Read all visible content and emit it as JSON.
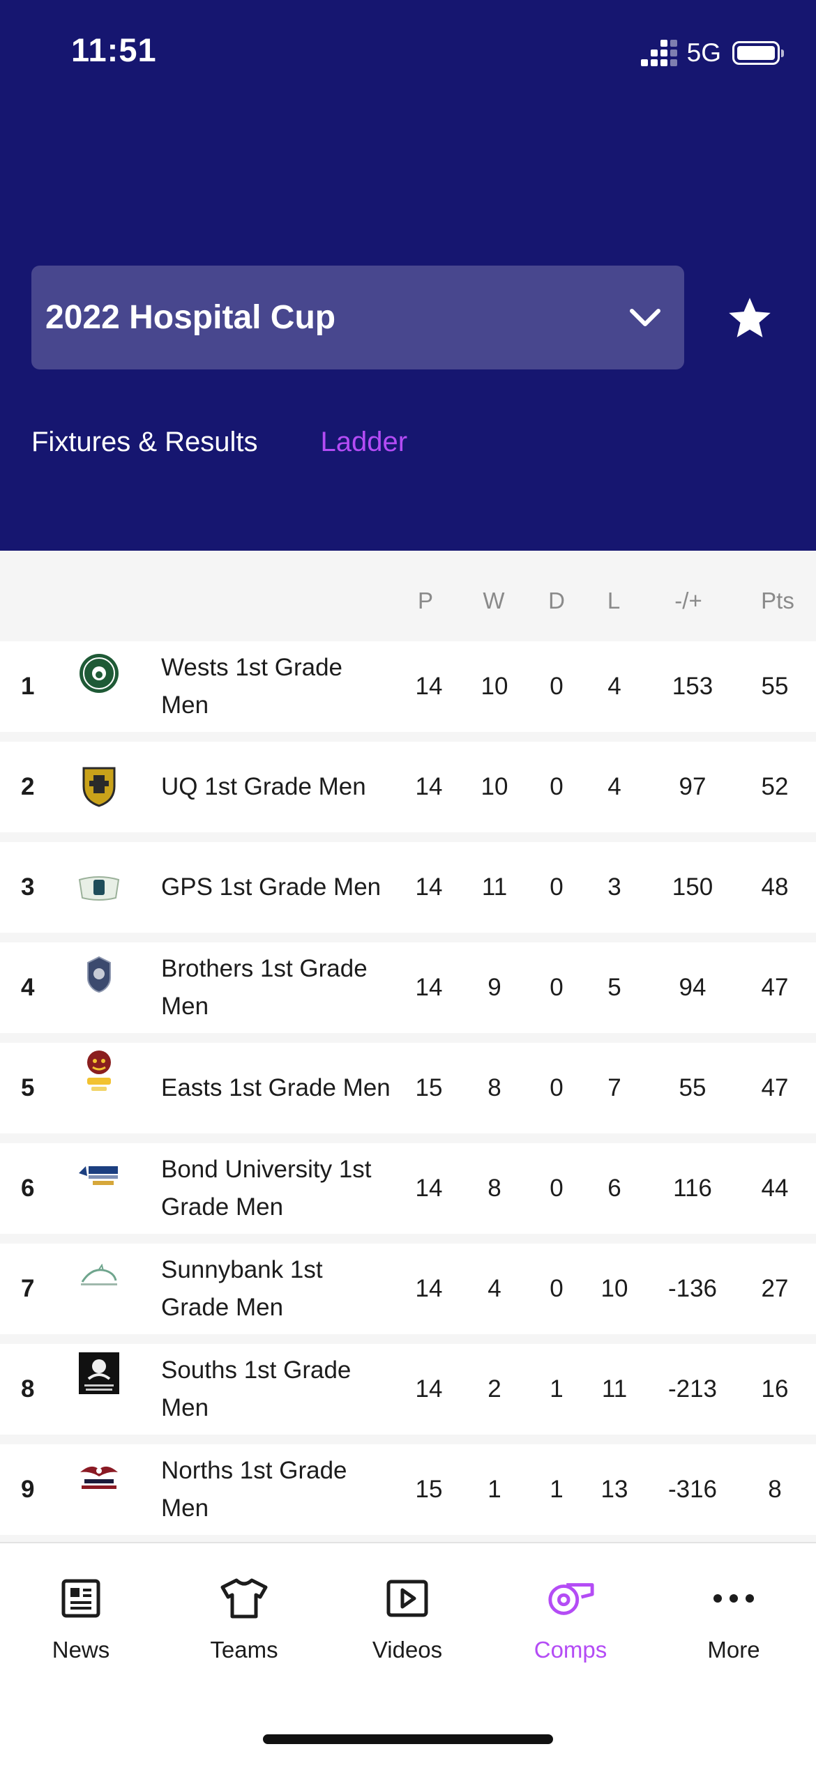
{
  "status_bar": {
    "time": "11:51",
    "network": "5G"
  },
  "competition": {
    "title": "2022 Hospital Cup"
  },
  "tabs": [
    {
      "label": "Fixtures & Results",
      "active": false
    },
    {
      "label": "Ladder",
      "active": true
    }
  ],
  "ladder": {
    "columns": [
      "P",
      "W",
      "D",
      "L",
      "-/+",
      "Pts"
    ],
    "rows": [
      {
        "rank": "1",
        "team": "Wests 1st Grade Men",
        "logo": "wests-bulldog-logo",
        "p": "14",
        "w": "10",
        "d": "0",
        "l": "4",
        "diff": "153",
        "pts": "55"
      },
      {
        "rank": "2",
        "team": "UQ 1st Grade Men",
        "logo": "uq-crest-logo",
        "p": "14",
        "w": "10",
        "d": "0",
        "l": "4",
        "diff": "97",
        "pts": "52"
      },
      {
        "rank": "3",
        "team": "GPS 1st Grade Men",
        "logo": "gps-logo",
        "p": "14",
        "w": "11",
        "d": "0",
        "l": "3",
        "diff": "150",
        "pts": "48"
      },
      {
        "rank": "4",
        "team": "Brothers 1st Grade Men",
        "logo": "brothers-shield-logo",
        "p": "14",
        "w": "9",
        "d": "0",
        "l": "5",
        "diff": "94",
        "pts": "47"
      },
      {
        "rank": "5",
        "team": "Easts 1st Grade Men",
        "logo": "easts-tiger-logo",
        "p": "15",
        "w": "8",
        "d": "0",
        "l": "7",
        "diff": "55",
        "pts": "47"
      },
      {
        "rank": "6",
        "team": "Bond University 1st Grade Men",
        "logo": "bond-rugby-logo",
        "p": "14",
        "w": "8",
        "d": "0",
        "l": "6",
        "diff": "116",
        "pts": "44"
      },
      {
        "rank": "7",
        "team": "Sunnybank 1st Grade Men",
        "logo": "sunnybank-logo",
        "p": "14",
        "w": "4",
        "d": "0",
        "l": "10",
        "diff": "-136",
        "pts": "27"
      },
      {
        "rank": "8",
        "team": "Souths 1st Grade Men",
        "logo": "souths-magpie-logo",
        "p": "14",
        "w": "2",
        "d": "1",
        "l": "11",
        "diff": "-213",
        "pts": "16"
      },
      {
        "rank": "9",
        "team": "Norths 1st Grade Men",
        "logo": "norths-eagle-logo",
        "p": "15",
        "w": "1",
        "d": "1",
        "l": "13",
        "diff": "-316",
        "pts": "8"
      }
    ]
  },
  "tab_bar": [
    {
      "label": "News",
      "icon": "news-icon",
      "active": false
    },
    {
      "label": "Teams",
      "icon": "jersey-icon",
      "active": false
    },
    {
      "label": "Videos",
      "icon": "play-icon",
      "active": false
    },
    {
      "label": "Comps",
      "icon": "whistle-icon",
      "active": true
    },
    {
      "label": "More",
      "icon": "more-dots-icon",
      "active": false
    }
  ],
  "colors": {
    "header_bg": "#161670",
    "accent": "#b44cf5",
    "select_bg": "#48478e"
  }
}
